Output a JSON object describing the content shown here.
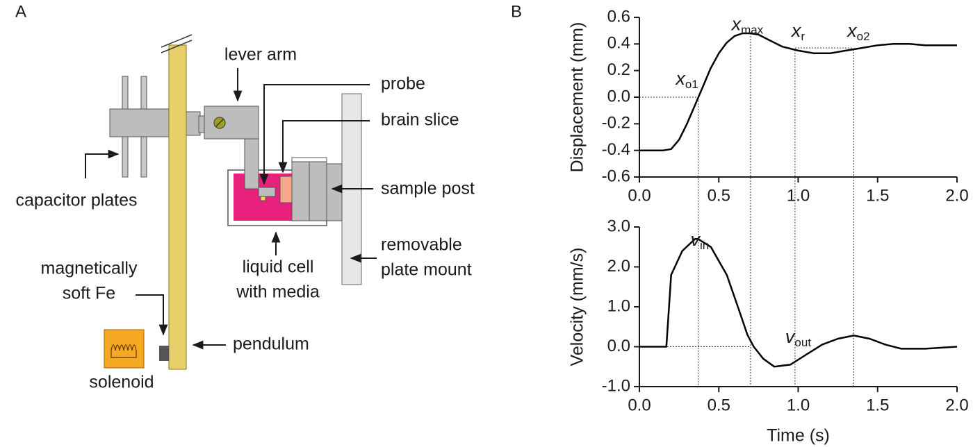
{
  "panels": {
    "a": "A",
    "b": "B"
  },
  "diagram": {
    "lever_arm": "lever arm",
    "probe": "probe",
    "brain_slice": "brain slice",
    "sample_post": "sample post",
    "capacitor_plates": "capacitor plates",
    "plate_mount": [
      "removable",
      "plate mount"
    ],
    "liquid_cell": [
      "liquid cell",
      "with media"
    ],
    "soft_fe": [
      "magnetically",
      "soft Fe"
    ],
    "pendulum": "pendulum",
    "solenoid": "solenoid"
  },
  "chart_data": [
    {
      "type": "line",
      "ylabel": "Displacement (mm)",
      "color": "#000000",
      "x": [
        0,
        0.1,
        0.15,
        0.2,
        0.25,
        0.3,
        0.35,
        0.4,
        0.45,
        0.5,
        0.55,
        0.6,
        0.65,
        0.7,
        0.75,
        0.8,
        0.9,
        1.0,
        1.1,
        1.2,
        1.3,
        1.4,
        1.5,
        1.6,
        1.7,
        1.8,
        1.9,
        2.0
      ],
      "values": [
        -0.4,
        -0.4,
        -0.4,
        -0.39,
        -0.32,
        -0.2,
        -0.06,
        0.08,
        0.22,
        0.33,
        0.41,
        0.46,
        0.48,
        0.48,
        0.47,
        0.44,
        0.38,
        0.35,
        0.33,
        0.33,
        0.35,
        0.37,
        0.39,
        0.4,
        0.4,
        0.39,
        0.39,
        0.39
      ],
      "xlim": [
        0,
        2
      ],
      "ylim": [
        -0.6,
        0.6
      ],
      "xticks": [
        {
          "value": 0,
          "label": "0.0"
        },
        0.5,
        {
          "value": 1,
          "label": "1.0"
        },
        1.5,
        {
          "value": 2,
          "label": "2.0"
        }
      ],
      "yticks": [
        -0.6,
        -0.4,
        -0.2,
        {
          "value": 0,
          "label": "0.0"
        },
        0.2,
        0.4,
        0.6
      ],
      "annotations": [
        {
          "text": "x",
          "sub": "o1",
          "x": 0.3,
          "y": 0.13
        },
        {
          "text": "x",
          "sub": "max",
          "x": 0.68,
          "y": 0.54
        },
        {
          "text": "x",
          "sub": "r",
          "x": 1.0,
          "y": 0.49
        },
        {
          "text": "x",
          "sub": "o2",
          "x": 1.38,
          "y": 0.49
        }
      ],
      "vlines": [
        0.37,
        0.7,
        0.98,
        1.35
      ],
      "hlines": [
        {
          "y": 0,
          "x": [
            0,
            0.37
          ]
        },
        {
          "y": 0.37,
          "x": [
            0.98,
            1.35
          ]
        }
      ]
    },
    {
      "type": "line",
      "ylabel": "Velocity (mm/s)",
      "xlabel": "Time (s)",
      "color": "#000000",
      "x": [
        0,
        0.1,
        0.17,
        0.2,
        0.27,
        0.35,
        0.37,
        0.45,
        0.55,
        0.62,
        0.68,
        0.72,
        0.78,
        0.85,
        0.95,
        1.05,
        1.15,
        1.25,
        1.35,
        1.45,
        1.55,
        1.65,
        1.8,
        2.0
      ],
      "values": [
        0,
        0,
        0,
        1.8,
        2.4,
        2.7,
        2.7,
        2.5,
        1.8,
        1.0,
        0.3,
        0,
        -0.3,
        -0.5,
        -0.45,
        -0.2,
        0.05,
        0.2,
        0.28,
        0.2,
        0.05,
        -0.05,
        -0.05,
        0
      ],
      "xlim": [
        0,
        2
      ],
      "ylim": [
        -1,
        3
      ],
      "xticks": [
        {
          "value": 0,
          "label": "0.0"
        },
        0.5,
        {
          "value": 1,
          "label": "1.0"
        },
        1.5,
        {
          "value": 2,
          "label": "2.0"
        }
      ],
      "yticks": [
        {
          "value": -1,
          "label": "-1.0"
        },
        {
          "value": 0,
          "label": "0.0"
        },
        {
          "value": 1,
          "label": "1.0"
        },
        {
          "value": 2,
          "label": "2.0"
        },
        {
          "value": 3,
          "label": "3.0"
        }
      ],
      "annotations": [
        {
          "text": "v",
          "sub": "in",
          "x": 0.38,
          "y": 2.65
        },
        {
          "text": "v",
          "sub": "out",
          "x": 1.0,
          "y": 0.22
        }
      ],
      "hlines": [
        {
          "y": 0,
          "x": [
            0,
            0.7
          ]
        }
      ]
    }
  ]
}
